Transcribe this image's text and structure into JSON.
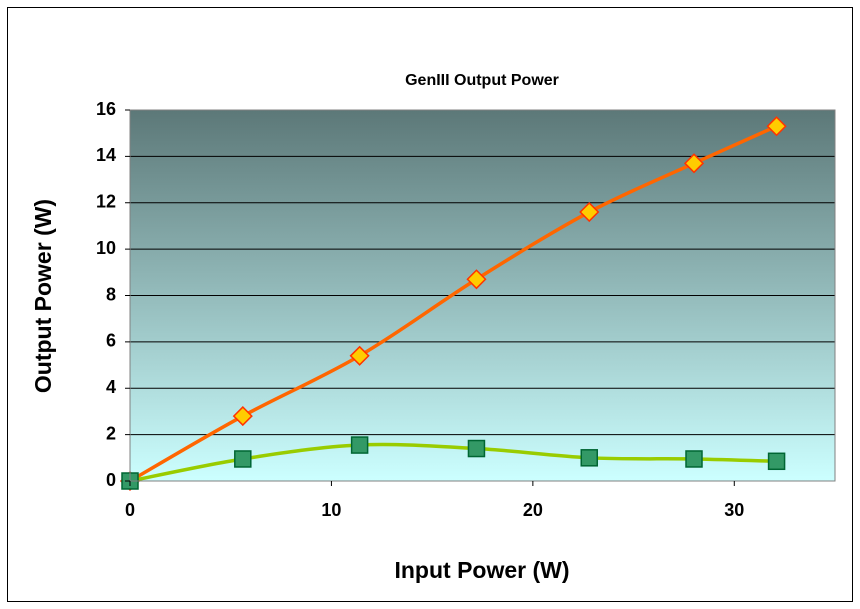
{
  "chart_data": {
    "type": "line",
    "title": "GenIII Output Power",
    "x_label": "Input Power (W)",
    "y_label": "Output Power (W)",
    "x": [
      0,
      5.6,
      11.4,
      17.2,
      22.8,
      28,
      32.1
    ],
    "series": [
      {
        "color": "#ff6600",
        "marker": "diamond",
        "marker_color": "#ffcc00",
        "values": [
          0,
          2.8,
          5.4,
          8.7,
          11.6,
          13.7,
          15.3
        ]
      },
      {
        "color": "#99cc00",
        "marker": "square",
        "marker_color": "#339966",
        "values": [
          0,
          0.95,
          1.55,
          1.4,
          1.0,
          0.95,
          0.85
        ]
      }
    ],
    "xlim": [
      0,
      35
    ],
    "xticks": [
      0,
      10,
      20,
      30
    ],
    "ylim": [
      0,
      16
    ],
    "yticks": [
      0,
      2,
      4,
      6,
      8,
      10,
      12,
      14,
      16
    ],
    "grid": true
  }
}
